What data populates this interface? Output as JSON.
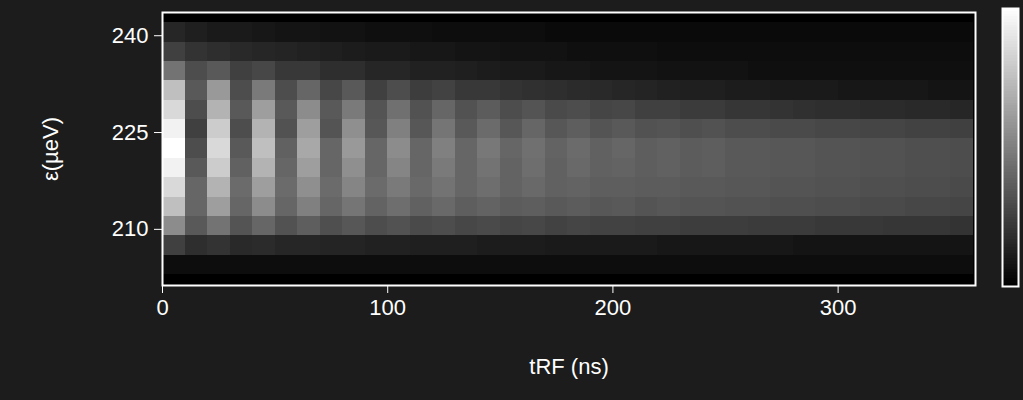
{
  "chart_data": {
    "type": "heatmap",
    "x_label": "tRF (ns)",
    "y_label": "ε(µeV)",
    "xlim": [
      0,
      361
    ],
    "ylim": [
      201.3,
      243.6
    ],
    "xticks": [
      0,
      100,
      200,
      300
    ],
    "yticks": [
      210,
      225,
      240
    ],
    "x_bins": [
      0,
      10,
      20,
      30,
      40,
      50,
      60,
      70,
      80,
      90,
      100,
      110,
      120,
      130,
      140,
      150,
      160,
      170,
      180,
      190,
      200,
      210,
      220,
      230,
      240,
      250,
      260,
      270,
      280,
      290,
      300,
      310,
      320,
      330,
      340,
      350,
      360
    ],
    "y_bins": [
      203,
      206,
      209,
      212,
      215,
      218,
      221,
      224,
      227,
      230,
      233,
      236,
      239,
      242
    ],
    "cells": [
      [
        0.05,
        0.05,
        0.05,
        0.05,
        0.05,
        0.05,
        0.05,
        0.05,
        0.05,
        0.05,
        0.05,
        0.05,
        0.05,
        0.05,
        0.05,
        0.05,
        0.05,
        0.05,
        0.05,
        0.05,
        0.05,
        0.05,
        0.05,
        0.05,
        0.05,
        0.05,
        0.05,
        0.05,
        0.05,
        0.05,
        0.05,
        0.05,
        0.05,
        0.05,
        0.05,
        0.05
      ],
      [
        0.25,
        0.18,
        0.2,
        0.16,
        0.17,
        0.15,
        0.15,
        0.14,
        0.14,
        0.13,
        0.13,
        0.12,
        0.12,
        0.12,
        0.11,
        0.11,
        0.11,
        0.1,
        0.1,
        0.1,
        0.1,
        0.1,
        0.09,
        0.09,
        0.09,
        0.09,
        0.09,
        0.09,
        0.08,
        0.08,
        0.08,
        0.08,
        0.08,
        0.08,
        0.08,
        0.08
      ],
      [
        0.55,
        0.35,
        0.45,
        0.33,
        0.4,
        0.32,
        0.37,
        0.31,
        0.34,
        0.3,
        0.32,
        0.29,
        0.3,
        0.28,
        0.29,
        0.27,
        0.28,
        0.26,
        0.27,
        0.26,
        0.26,
        0.25,
        0.25,
        0.24,
        0.24,
        0.24,
        0.23,
        0.23,
        0.23,
        0.22,
        0.22,
        0.22,
        0.21,
        0.21,
        0.21,
        0.2
      ],
      [
        0.75,
        0.4,
        0.62,
        0.4,
        0.55,
        0.4,
        0.5,
        0.4,
        0.46,
        0.39,
        0.43,
        0.38,
        0.41,
        0.37,
        0.39,
        0.36,
        0.37,
        0.35,
        0.36,
        0.34,
        0.35,
        0.33,
        0.34,
        0.33,
        0.33,
        0.32,
        0.32,
        0.31,
        0.31,
        0.3,
        0.3,
        0.29,
        0.29,
        0.28,
        0.28,
        0.27
      ],
      [
        0.85,
        0.4,
        0.7,
        0.42,
        0.62,
        0.42,
        0.56,
        0.42,
        0.52,
        0.42,
        0.48,
        0.41,
        0.45,
        0.4,
        0.43,
        0.39,
        0.41,
        0.38,
        0.39,
        0.37,
        0.37,
        0.36,
        0.36,
        0.35,
        0.35,
        0.34,
        0.34,
        0.33,
        0.33,
        0.32,
        0.32,
        0.31,
        0.31,
        0.3,
        0.3,
        0.29
      ],
      [
        0.95,
        0.35,
        0.8,
        0.38,
        0.7,
        0.4,
        0.62,
        0.4,
        0.56,
        0.4,
        0.52,
        0.4,
        0.48,
        0.4,
        0.45,
        0.39,
        0.43,
        0.38,
        0.41,
        0.38,
        0.39,
        0.37,
        0.38,
        0.36,
        0.37,
        0.35,
        0.35,
        0.34,
        0.34,
        0.33,
        0.33,
        0.32,
        0.32,
        0.31,
        0.31,
        0.3
      ],
      [
        1.0,
        0.3,
        0.85,
        0.35,
        0.75,
        0.38,
        0.66,
        0.4,
        0.6,
        0.4,
        0.55,
        0.4,
        0.5,
        0.4,
        0.47,
        0.4,
        0.44,
        0.39,
        0.42,
        0.38,
        0.4,
        0.37,
        0.38,
        0.36,
        0.37,
        0.35,
        0.35,
        0.34,
        0.34,
        0.33,
        0.33,
        0.32,
        0.32,
        0.31,
        0.31,
        0.3
      ],
      [
        0.95,
        0.25,
        0.8,
        0.3,
        0.7,
        0.32,
        0.62,
        0.33,
        0.56,
        0.34,
        0.5,
        0.34,
        0.46,
        0.35,
        0.42,
        0.34,
        0.4,
        0.34,
        0.37,
        0.33,
        0.35,
        0.32,
        0.33,
        0.31,
        0.32,
        0.3,
        0.3,
        0.29,
        0.29,
        0.28,
        0.28,
        0.27,
        0.27,
        0.26,
        0.26,
        0.25
      ],
      [
        0.85,
        0.3,
        0.7,
        0.35,
        0.62,
        0.35,
        0.55,
        0.35,
        0.48,
        0.33,
        0.44,
        0.32,
        0.4,
        0.32,
        0.36,
        0.3,
        0.33,
        0.29,
        0.3,
        0.27,
        0.28,
        0.25,
        0.25,
        0.23,
        0.23,
        0.21,
        0.21,
        0.2,
        0.19,
        0.18,
        0.18,
        0.17,
        0.17,
        0.16,
        0.16,
        0.15
      ],
      [
        0.75,
        0.35,
        0.6,
        0.3,
        0.48,
        0.3,
        0.4,
        0.28,
        0.35,
        0.25,
        0.3,
        0.24,
        0.26,
        0.22,
        0.22,
        0.2,
        0.19,
        0.18,
        0.17,
        0.16,
        0.15,
        0.14,
        0.13,
        0.12,
        0.12,
        0.11,
        0.11,
        0.1,
        0.1,
        0.1,
        0.09,
        0.09,
        0.09,
        0.09,
        0.08,
        0.08
      ],
      [
        0.45,
        0.3,
        0.35,
        0.25,
        0.28,
        0.22,
        0.22,
        0.18,
        0.18,
        0.15,
        0.15,
        0.13,
        0.13,
        0.12,
        0.11,
        0.1,
        0.1,
        0.09,
        0.09,
        0.08,
        0.08,
        0.08,
        0.07,
        0.07,
        0.07,
        0.07,
        0.06,
        0.06,
        0.06,
        0.06,
        0.06,
        0.06,
        0.06,
        0.06,
        0.06,
        0.06
      ],
      [
        0.25,
        0.2,
        0.18,
        0.16,
        0.15,
        0.14,
        0.13,
        0.12,
        0.11,
        0.1,
        0.1,
        0.09,
        0.09,
        0.08,
        0.08,
        0.07,
        0.07,
        0.07,
        0.06,
        0.06,
        0.06,
        0.06,
        0.05,
        0.05,
        0.05,
        0.05,
        0.05,
        0.05,
        0.05,
        0.05,
        0.05,
        0.05,
        0.05,
        0.05,
        0.05,
        0.05
      ],
      [
        0.15,
        0.12,
        0.1,
        0.1,
        0.09,
        0.08,
        0.08,
        0.07,
        0.07,
        0.06,
        0.06,
        0.06,
        0.05,
        0.05,
        0.05,
        0.05,
        0.05,
        0.04,
        0.04,
        0.04,
        0.04,
        0.04,
        0.04,
        0.04,
        0.04,
        0.04,
        0.04,
        0.04,
        0.04,
        0.04,
        0.04,
        0.04,
        0.04,
        0.04,
        0.04,
        0.04
      ]
    ],
    "colorbar_range": [
      0,
      1
    ]
  }
}
